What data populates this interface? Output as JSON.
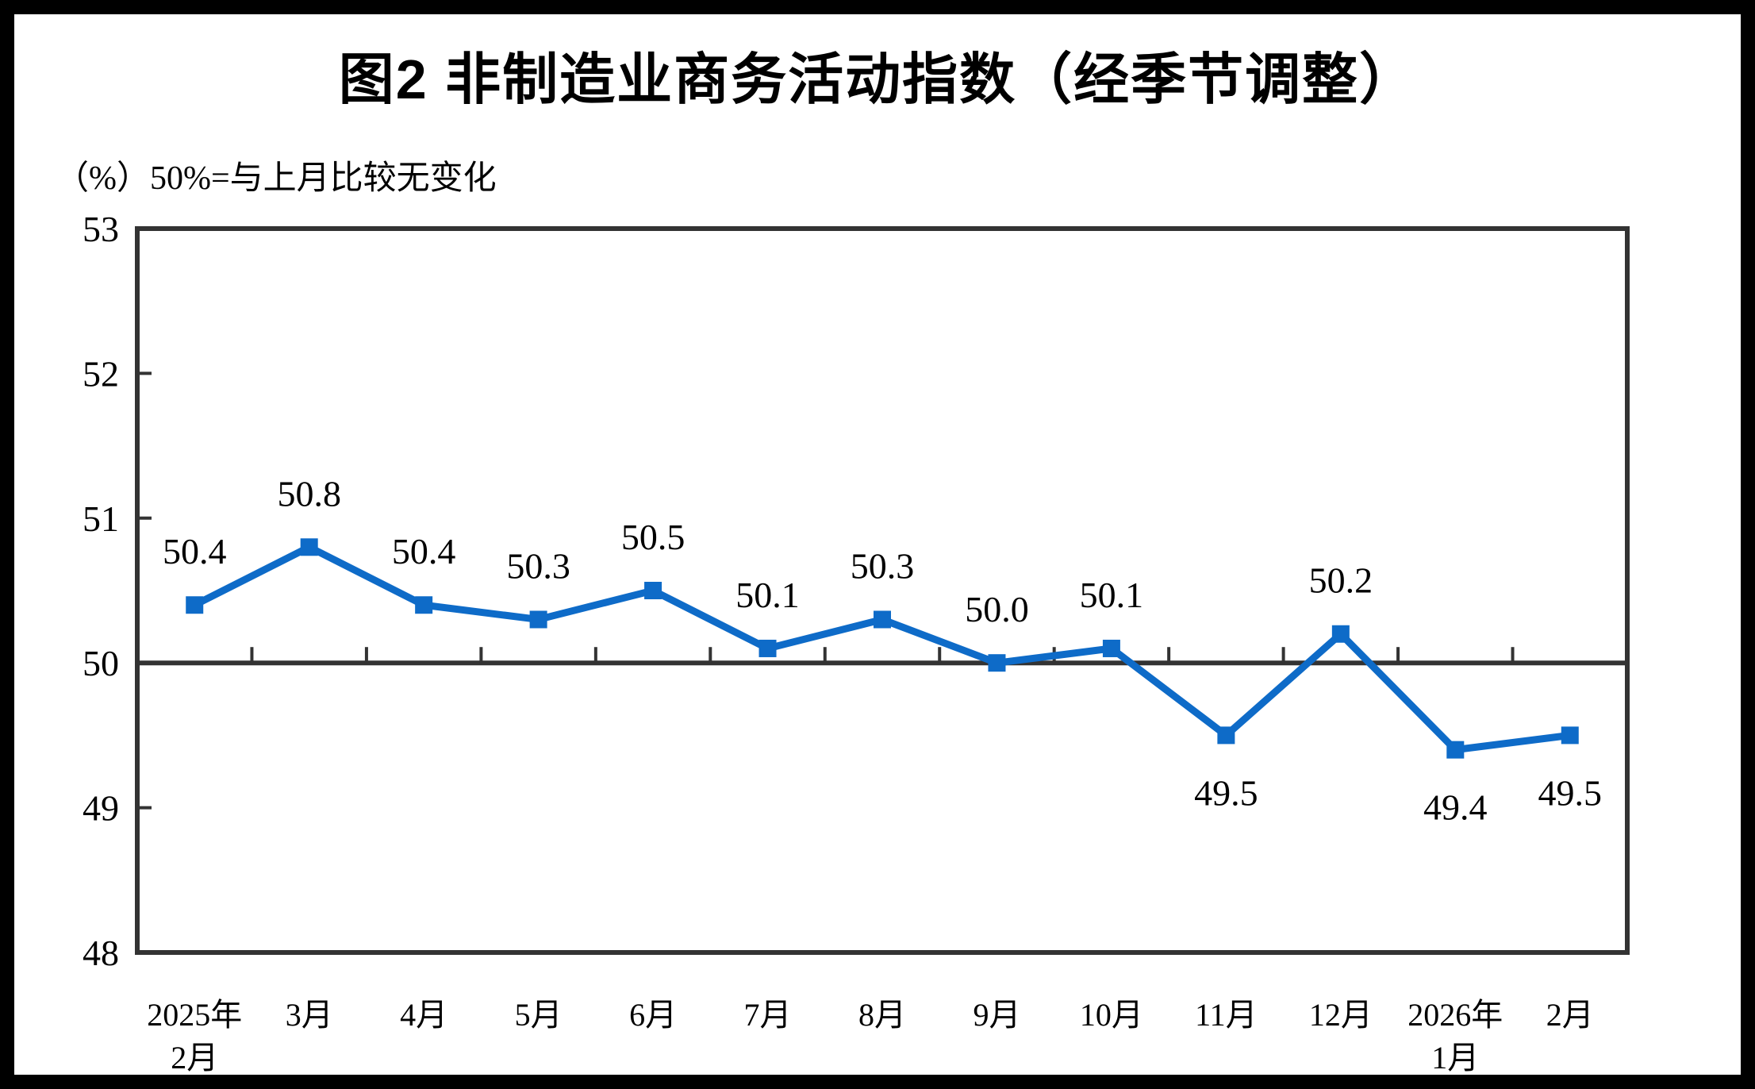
{
  "page": {
    "title": "图2 非制造业商务活动指数（经季节调整）",
    "unit_note": "（%）50%=与上月比较无变化"
  },
  "chart_data": {
    "type": "line",
    "title": "图2 非制造业商务活动指数（经季节调整）",
    "unit_note": "（%）50%=与上月比较无变化",
    "categories": [
      [
        "2025年",
        "2月"
      ],
      [
        "3月"
      ],
      [
        "4月"
      ],
      [
        "5月"
      ],
      [
        "6月"
      ],
      [
        "7月"
      ],
      [
        "8月"
      ],
      [
        "9月"
      ],
      [
        "10月"
      ],
      [
        "11月"
      ],
      [
        "12月"
      ],
      [
        "2026年",
        "1月"
      ],
      [
        "2月"
      ]
    ],
    "values": [
      50.4,
      50.8,
      50.4,
      50.3,
      50.5,
      50.1,
      50.3,
      50.0,
      50.1,
      49.5,
      50.2,
      49.4,
      49.5
    ],
    "data_labels": [
      "50.4",
      "50.8",
      "50.4",
      "50.3",
      "50.5",
      "50.1",
      "50.3",
      "50.0",
      "50.1",
      "49.5",
      "50.2",
      "49.4",
      "49.5"
    ],
    "label_positions": [
      "above",
      "above",
      "above",
      "above",
      "above",
      "above",
      "above",
      "above",
      "above",
      "below",
      "above",
      "below",
      "below"
    ],
    "ylim": [
      48,
      53
    ],
    "yticks": [
      48,
      49,
      50,
      51,
      52,
      53
    ],
    "reference_line_y": 50,
    "line_color": "#0E6BC8",
    "axis_color": "#333333",
    "frame_color": "#000000",
    "marker": "square",
    "grid": "off",
    "legend": "none"
  }
}
